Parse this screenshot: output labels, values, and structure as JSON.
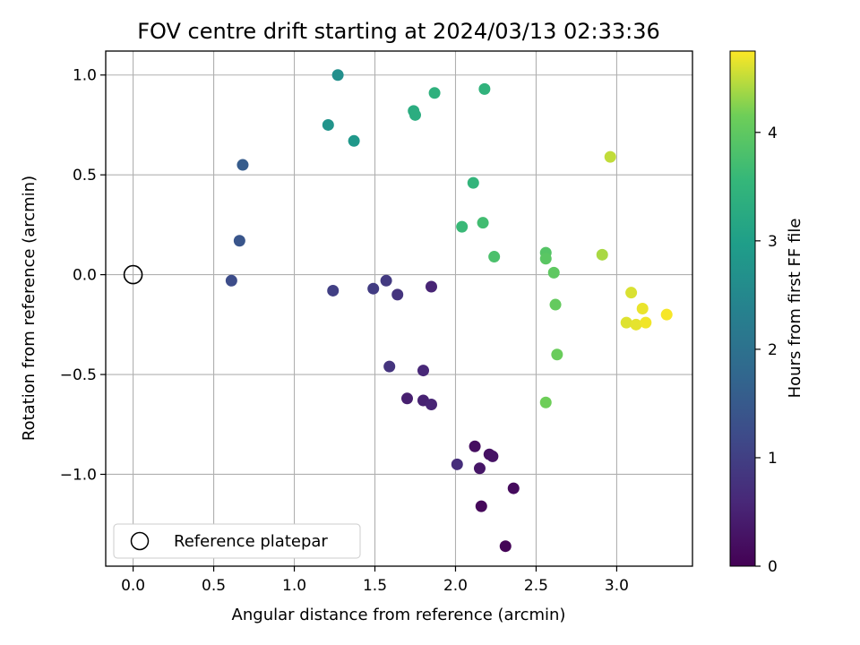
{
  "chart_data": {
    "type": "scatter",
    "title": "FOV centre drift starting at 2024/03/13 02:33:36",
    "xlabel": "Angular distance from reference (arcmin)",
    "ylabel": "Rotation from reference (arcmin)",
    "xlim": [
      -0.17,
      3.47
    ],
    "ylim": [
      -1.46,
      1.12
    ],
    "xticks": [
      0.0,
      0.5,
      1.0,
      1.5,
      2.0,
      2.5,
      3.0
    ],
    "xtick_labels": [
      "0.0",
      "0.5",
      "1.0",
      "1.5",
      "2.0",
      "2.5",
      "3.0"
    ],
    "yticks": [
      -1.0,
      -0.5,
      0.0,
      0.5,
      1.0
    ],
    "ytick_labels": [
      "−1.0",
      "−0.5",
      "0.0",
      "0.5",
      "1.0"
    ],
    "grid": true,
    "colormap": "viridis",
    "colorbar": {
      "label": "Hours from first FF file",
      "range": [
        0,
        4.75
      ],
      "ticks": [
        0,
        1,
        2,
        3,
        4
      ],
      "tick_labels": [
        "0",
        "1",
        "2",
        "3",
        "4"
      ]
    },
    "reference": {
      "x": 0.0,
      "y": 0.0,
      "label": "Reference platepar"
    },
    "legend": {
      "placement": "lower-left",
      "entries": [
        "Reference platepar"
      ]
    },
    "points": [
      {
        "x": 2.31,
        "y": -1.36,
        "h": 0.05
      },
      {
        "x": 2.16,
        "y": -1.16,
        "h": 0.1
      },
      {
        "x": 2.36,
        "y": -1.07,
        "h": 0.15
      },
      {
        "x": 2.12,
        "y": -0.86,
        "h": 0.2
      },
      {
        "x": 2.21,
        "y": -0.9,
        "h": 0.25
      },
      {
        "x": 2.23,
        "y": -0.91,
        "h": 0.28
      },
      {
        "x": 2.15,
        "y": -0.97,
        "h": 0.32
      },
      {
        "x": 1.7,
        "y": -0.62,
        "h": 0.45
      },
      {
        "x": 1.8,
        "y": -0.63,
        "h": 0.5
      },
      {
        "x": 1.85,
        "y": -0.65,
        "h": 0.55
      },
      {
        "x": 1.8,
        "y": -0.48,
        "h": 0.6
      },
      {
        "x": 2.01,
        "y": -0.95,
        "h": 0.7
      },
      {
        "x": 1.85,
        "y": -0.06,
        "h": 0.55
      },
      {
        "x": 1.59,
        "y": -0.46,
        "h": 0.8
      },
      {
        "x": 1.64,
        "y": -0.1,
        "h": 0.8
      },
      {
        "x": 1.57,
        "y": -0.03,
        "h": 0.9
      },
      {
        "x": 1.49,
        "y": -0.07,
        "h": 0.95
      },
      {
        "x": 1.24,
        "y": -0.08,
        "h": 1.0
      },
      {
        "x": 0.61,
        "y": -0.03,
        "h": 1.25
      },
      {
        "x": 0.66,
        "y": 0.17,
        "h": 1.4
      },
      {
        "x": 0.68,
        "y": 0.55,
        "h": 1.55
      },
      {
        "x": 1.27,
        "y": 1.0,
        "h": 2.65
      },
      {
        "x": 1.21,
        "y": 0.75,
        "h": 2.75
      },
      {
        "x": 1.37,
        "y": 0.67,
        "h": 2.85
      },
      {
        "x": 1.74,
        "y": 0.82,
        "h": 3.3
      },
      {
        "x": 1.75,
        "y": 0.8,
        "h": 3.32
      },
      {
        "x": 1.87,
        "y": 0.91,
        "h": 3.4
      },
      {
        "x": 2.18,
        "y": 0.93,
        "h": 3.45
      },
      {
        "x": 2.11,
        "y": 0.46,
        "h": 3.5
      },
      {
        "x": 2.04,
        "y": 0.24,
        "h": 3.6
      },
      {
        "x": 2.17,
        "y": 0.26,
        "h": 3.7
      },
      {
        "x": 2.24,
        "y": 0.09,
        "h": 3.8
      },
      {
        "x": 2.56,
        "y": 0.11,
        "h": 3.9
      },
      {
        "x": 2.56,
        "y": 0.08,
        "h": 3.95
      },
      {
        "x": 2.61,
        "y": 0.01,
        "h": 4.0
      },
      {
        "x": 2.62,
        "y": -0.15,
        "h": 4.05
      },
      {
        "x": 2.63,
        "y": -0.4,
        "h": 4.1
      },
      {
        "x": 2.56,
        "y": -0.64,
        "h": 4.15
      },
      {
        "x": 2.91,
        "y": 0.1,
        "h": 4.4
      },
      {
        "x": 2.96,
        "y": 0.59,
        "h": 4.5
      },
      {
        "x": 3.09,
        "y": -0.09,
        "h": 4.6
      },
      {
        "x": 3.06,
        "y": -0.24,
        "h": 4.62
      },
      {
        "x": 3.12,
        "y": -0.25,
        "h": 4.65
      },
      {
        "x": 3.16,
        "y": -0.17,
        "h": 4.67
      },
      {
        "x": 3.18,
        "y": -0.24,
        "h": 4.7
      },
      {
        "x": 3.31,
        "y": -0.2,
        "h": 4.72
      }
    ]
  }
}
